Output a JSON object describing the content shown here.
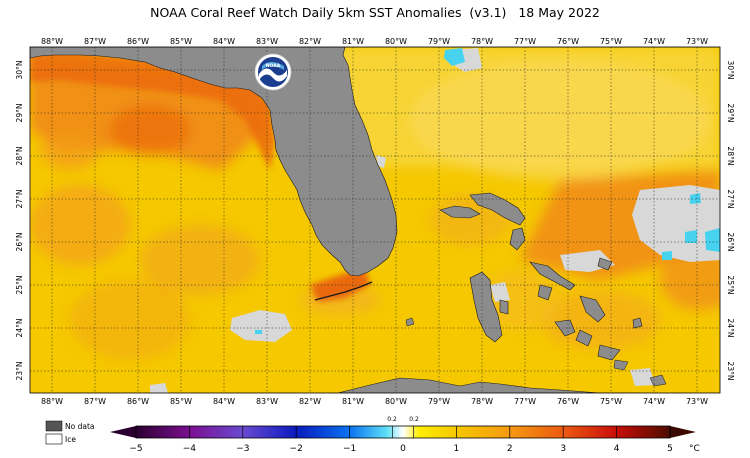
{
  "title": "NOAA Coral Reef Watch Daily 5km SST Anomalies  (v3.1)   18 May 2022",
  "logo_text": "NOAA",
  "map": {
    "lon_labels": [
      "88°W",
      "87°W",
      "86°W",
      "85°W",
      "84°W",
      "83°W",
      "82°W",
      "81°W",
      "80°W",
      "79°W",
      "78°W",
      "77°W",
      "76°W",
      "75°W",
      "74°W",
      "73°W"
    ],
    "lat_labels_left": [
      "30°N",
      "29°N",
      "28°N",
      "27°N",
      "26°N",
      "25°N",
      "24°N",
      "23°N"
    ],
    "lat_labels_right": [
      "30°N",
      "29°N",
      "28°N",
      "27°N",
      "26°N",
      "25°N",
      "24°N",
      "23°N"
    ]
  },
  "colorbar": {
    "ticks": [
      "−5",
      "−4",
      "−3",
      "−2",
      "−1",
      "0",
      "1",
      "2",
      "3",
      "4",
      "5"
    ],
    "small_ticks": [
      "0.2",
      "0.2"
    ],
    "unit": "°C"
  },
  "legend": {
    "no_data": "No data",
    "ice": "Ice"
  },
  "colors": {
    "land": "#8c8c8c",
    "no_data": "#d8d8d8",
    "ocean_base": "#f5c800",
    "warm": "#f07a10",
    "cool": "#47d3f0"
  }
}
